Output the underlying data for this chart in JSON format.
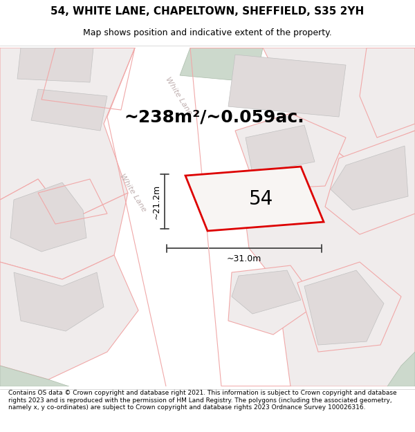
{
  "title_line1": "54, WHITE LANE, CHAPELTOWN, SHEFFIELD, S35 2YH",
  "title_line2": "Map shows position and indicative extent of the property.",
  "area_text": "~238m²/~0.059ac.",
  "house_number": "54",
  "dim_width": "~31.0m",
  "dim_height": "~21.2m",
  "footer_text": "Contains OS data © Crown copyright and database right 2021. This information is subject to Crown copyright and database rights 2023 and is reproduced with the permission of HM Land Registry. The polygons (including the associated geometry, namely x, y co-ordinates) are subject to Crown copyright and database rights 2023 Ordnance Survey 100026316.",
  "bg_color": "#ffffff",
  "map_bg": "#f7f4f4",
  "road_fill": "#ffffff",
  "plot_fill": "#f0ecec",
  "building_fill": "#e0dada",
  "green_fill": "#ccd9cc",
  "road_line": "#f0a8a8",
  "plot_line": "#f0a8a8",
  "red_line": "#dd0000",
  "dim_color": "#444444",
  "street_color": "#c0b0b0",
  "title_fs": 11,
  "sub_fs": 9,
  "area_fs": 18,
  "num_fs": 20,
  "dim_fs": 9,
  "footer_fs": 6.5
}
